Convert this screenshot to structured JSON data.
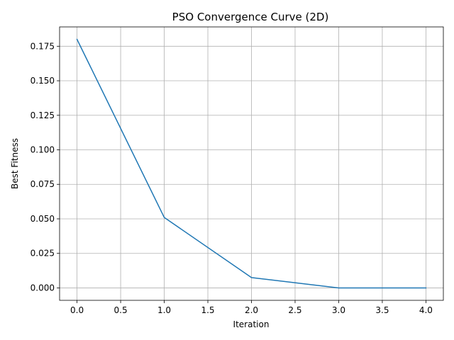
{
  "chart_data": {
    "type": "line",
    "title": "PSO Convergence Curve (2D)",
    "xlabel": "Iteration",
    "ylabel": "Best Fitness",
    "xlim": [
      -0.2,
      4.2
    ],
    "ylim": [
      -0.009,
      0.189
    ],
    "xticks": [
      0.0,
      0.5,
      1.0,
      1.5,
      2.0,
      2.5,
      3.0,
      3.5,
      4.0
    ],
    "xtick_labels": [
      "0.0",
      "0.5",
      "1.0",
      "1.5",
      "2.0",
      "2.5",
      "3.0",
      "3.5",
      "4.0"
    ],
    "yticks": [
      0.0,
      0.025,
      0.05,
      0.075,
      0.1,
      0.125,
      0.15,
      0.175
    ],
    "ytick_labels": [
      "0.000",
      "0.025",
      "0.050",
      "0.075",
      "0.100",
      "0.125",
      "0.150",
      "0.175"
    ],
    "grid": true,
    "series": [
      {
        "color": "#1f77b4",
        "x": [
          0,
          1,
          2,
          3,
          4
        ],
        "y": [
          0.18,
          0.051,
          0.0075,
          0.0,
          0.0
        ]
      }
    ]
  }
}
